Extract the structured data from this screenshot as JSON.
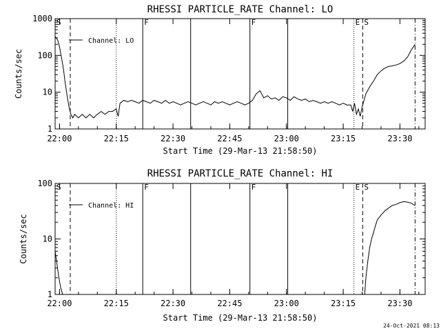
{
  "footer": {
    "timestamp": "24-Oct-2021 08:13"
  },
  "chart_data": [
    {
      "type": "line",
      "title": "RHESSI PARTICLE_RATE Channel: LO",
      "xlabel": "Start Time (29-Mar-13 21:58:50)",
      "ylabel": "Counts/sec",
      "y_scale": "log",
      "xlim": [
        "21:58:50",
        "23:36:40"
      ],
      "ylim": [
        1,
        1000
      ],
      "x_ticks": [
        "22:00",
        "22:15",
        "22:30",
        "22:45",
        "23:00",
        "23:15",
        "23:30"
      ],
      "y_ticks": [
        "1",
        "10",
        "100",
        "1000"
      ],
      "legend": {
        "position": "top-left",
        "entries": [
          "Channel: LO"
        ]
      },
      "markers": [
        {
          "label": "S",
          "time": "21:58:50",
          "style": "dashdot"
        },
        {
          "label": "",
          "time": "22:02:50",
          "style": "dashed"
        },
        {
          "label": "",
          "time": "22:15:00",
          "style": "dotted"
        },
        {
          "label": "F",
          "time": "22:22:00",
          "style": "solid"
        },
        {
          "label": "",
          "time": "22:34:40",
          "style": "solid"
        },
        {
          "label": "F",
          "time": "22:50:20",
          "style": "solid"
        },
        {
          "label": "",
          "time": "23:00:20",
          "style": "solid"
        },
        {
          "label": "E",
          "time": "23:17:50",
          "style": "dotted"
        },
        {
          "label": "S",
          "time": "23:20:10",
          "style": "dashed"
        },
        {
          "label": "",
          "time": "23:34:00",
          "style": "dashdot"
        }
      ],
      "series": [
        {
          "name": "Channel: LO",
          "x": [
            "21:58:50",
            "21:59:30",
            "22:00:00",
            "22:00:30",
            "22:01:00",
            "22:01:30",
            "22:02:00",
            "22:02:30",
            "22:03:00",
            "22:03:30",
            "22:04:00",
            "22:05:00",
            "22:06:00",
            "22:07:00",
            "22:08:00",
            "22:09:00",
            "22:10:00",
            "22:11:00",
            "22:12:00",
            "22:13:00",
            "22:14:00",
            "22:15:00",
            "22:15:30",
            "22:16:00",
            "22:17:00",
            "22:18:00",
            "22:19:00",
            "22:20:00",
            "22:21:00",
            "22:22:00",
            "22:23:00",
            "22:24:00",
            "22:25:00",
            "22:26:00",
            "22:27:00",
            "22:28:00",
            "22:29:00",
            "22:30:00",
            "22:31:00",
            "22:32:00",
            "22:33:00",
            "22:34:00",
            "22:35:00",
            "22:36:00",
            "22:37:00",
            "22:38:00",
            "22:39:00",
            "22:40:00",
            "22:41:00",
            "22:42:00",
            "22:43:00",
            "22:44:00",
            "22:45:00",
            "22:46:00",
            "22:47:00",
            "22:48:00",
            "22:49:00",
            "22:50:00",
            "22:51:00",
            "22:52:00",
            "22:53:00",
            "22:54:00",
            "22:55:00",
            "22:56:00",
            "22:57:00",
            "22:58:00",
            "22:59:00",
            "23:00:00",
            "23:01:00",
            "23:02:00",
            "23:03:00",
            "23:04:00",
            "23:05:00",
            "23:06:00",
            "23:07:00",
            "23:08:00",
            "23:09:00",
            "23:10:00",
            "23:11:00",
            "23:12:00",
            "23:13:00",
            "23:14:00",
            "23:15:00",
            "23:16:00",
            "23:17:00",
            "23:17:30",
            "23:18:00",
            "23:18:30",
            "23:19:00",
            "23:19:30",
            "23:20:00",
            "23:20:30",
            "23:21:00",
            "23:22:00",
            "23:23:00",
            "23:24:00",
            "23:25:00",
            "23:26:00",
            "23:27:00",
            "23:28:00",
            "23:29:00",
            "23:30:00",
            "23:31:00",
            "23:32:00",
            "23:33:00",
            "23:34:00"
          ],
          "y": [
            330,
            260,
            170,
            90,
            45,
            18,
            8,
            4,
            2.5,
            2,
            2.5,
            2,
            2.5,
            2,
            2.5,
            2,
            2.5,
            3,
            2.5,
            3,
            3,
            3.5,
            2.2,
            5,
            6,
            5.5,
            6,
            5.5,
            5,
            6,
            5.5,
            5,
            6,
            5.5,
            5,
            6,
            5,
            5.5,
            5,
            4.5,
            5,
            5.5,
            5,
            4.5,
            5,
            5.5,
            5,
            4.5,
            5.5,
            5,
            5.5,
            5,
            4.5,
            5,
            5.5,
            5,
            4.5,
            5,
            6,
            9,
            11,
            7,
            8,
            6.5,
            7,
            6,
            7.5,
            7,
            6,
            7.5,
            6.5,
            6,
            6.5,
            5.5,
            6,
            5.5,
            5,
            5.5,
            5,
            5.5,
            5,
            4.5,
            5,
            4.5,
            4.5,
            3,
            5,
            2.5,
            3.5,
            2.2,
            4,
            6,
            9,
            14,
            20,
            30,
            38,
            45,
            50,
            52,
            55,
            60,
            70,
            90,
            140,
            200
          ]
        }
      ]
    },
    {
      "type": "line",
      "title": "RHESSI PARTICLE_RATE Channel: HI",
      "xlabel": "Start Time (29-Mar-13 21:58:50)",
      "ylabel": "Counts/sec",
      "y_scale": "log",
      "xlim": [
        "21:58:50",
        "23:36:40"
      ],
      "ylim": [
        1,
        100
      ],
      "x_ticks": [
        "22:00",
        "22:15",
        "22:30",
        "22:45",
        "23:00",
        "23:15",
        "23:30"
      ],
      "y_ticks": [
        "1",
        "10",
        "100"
      ],
      "legend": {
        "position": "top-left",
        "entries": [
          "Channel: HI"
        ]
      },
      "markers": [
        {
          "label": "S",
          "time": "21:58:50",
          "style": "dashdot"
        },
        {
          "label": "",
          "time": "22:02:50",
          "style": "dashed"
        },
        {
          "label": "",
          "time": "22:15:00",
          "style": "dotted"
        },
        {
          "label": "F",
          "time": "22:22:00",
          "style": "solid"
        },
        {
          "label": "",
          "time": "22:34:40",
          "style": "solid"
        },
        {
          "label": "F",
          "time": "22:50:20",
          "style": "solid"
        },
        {
          "label": "",
          "time": "23:00:20",
          "style": "solid"
        },
        {
          "label": "E",
          "time": "23:17:50",
          "style": "dotted"
        },
        {
          "label": "S",
          "time": "23:20:10",
          "style": "dashed"
        },
        {
          "label": "",
          "time": "23:34:00",
          "style": "dashdot"
        }
      ],
      "series": [
        {
          "name": "Channel: HI",
          "x": [
            "21:58:50",
            "21:59:20",
            "21:59:50",
            "22:00:20",
            "22:00:50",
            "23:20:40",
            "23:21:00",
            "23:21:30",
            "23:22:00",
            "23:22:30",
            "23:23:00",
            "23:23:30",
            "23:24:00",
            "23:25:00",
            "23:26:00",
            "23:27:00",
            "23:28:00",
            "23:29:00",
            "23:30:00",
            "23:31:00",
            "23:32:00",
            "23:33:00",
            "23:34:00"
          ],
          "y": [
            6,
            3.5,
            2,
            1.3,
            1,
            1,
            2,
            4,
            7,
            10,
            13,
            17,
            22,
            27,
            32,
            36,
            40,
            42,
            45,
            47,
            46,
            44,
            40
          ]
        }
      ]
    }
  ]
}
